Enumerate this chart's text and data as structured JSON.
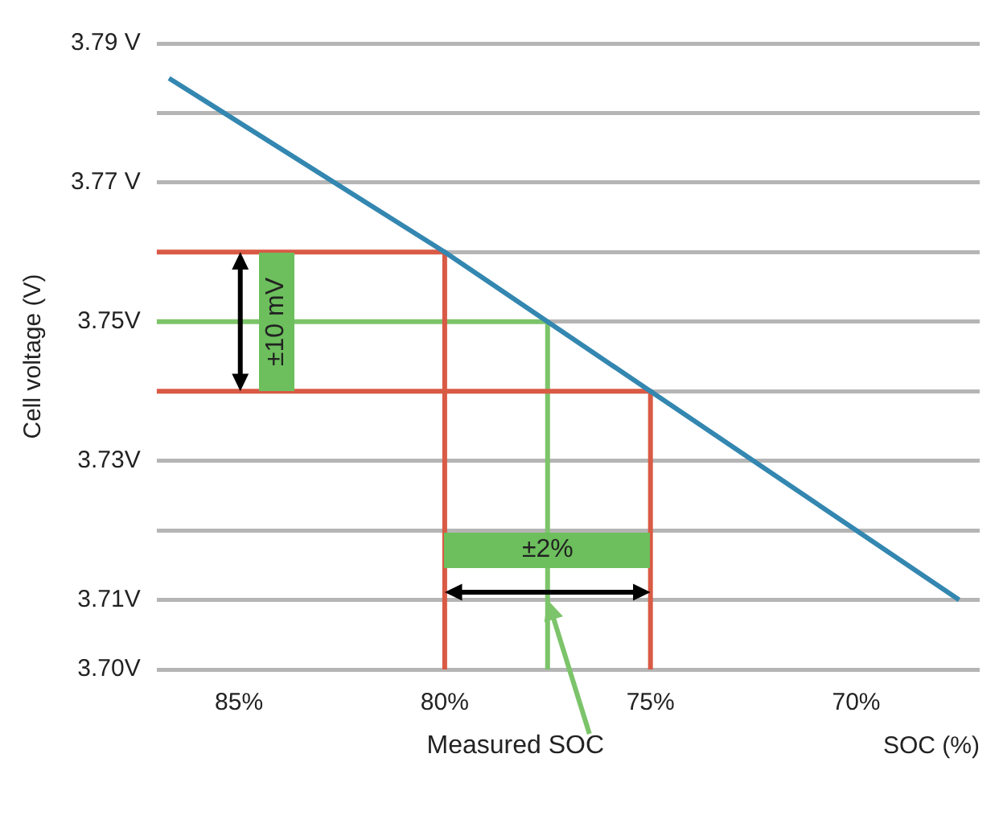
{
  "chart_data": {
    "type": "line",
    "xlabel": "SOC (%)",
    "ylabel": "Cell voltage (V)",
    "xlim": [
      87,
      67
    ],
    "xticks": [
      {
        "value": 85,
        "label": "85%"
      },
      {
        "value": 80,
        "label": "80%"
      },
      {
        "value": 75,
        "label": "75%"
      },
      {
        "value": 70,
        "label": "70%"
      }
    ],
    "ylim": [
      3.7,
      3.79
    ],
    "yticks": [
      {
        "value": 3.7,
        "label": "3.70V"
      },
      {
        "value": 3.71,
        "label": "3.71V"
      },
      {
        "value": 3.72,
        "label": null
      },
      {
        "value": 3.73,
        "label": "3.73V"
      },
      {
        "value": 3.74,
        "label": null
      },
      {
        "value": 3.75,
        "label": "3.75V"
      },
      {
        "value": 3.76,
        "label": null
      },
      {
        "value": 3.77,
        "label": "3.77 V"
      },
      {
        "value": 3.78,
        "label": null
      },
      {
        "value": 3.79,
        "label": "3.79 V"
      }
    ],
    "grid": "y",
    "legend": false,
    "marker": "none",
    "series": [
      {
        "color": "#3387b0",
        "x": [
          86.7,
          80,
          75,
          67.5
        ],
        "values": [
          3.785,
          3.76,
          3.74,
          3.71
        ]
      },
      {
        "color": "#d95a45",
        "x": [
          87,
          80,
          80
        ],
        "values": [
          3.76,
          3.76,
          3.7
        ]
      },
      {
        "color": "#d95a45",
        "x": [
          87,
          75,
          75
        ],
        "values": [
          3.74,
          3.74,
          3.7
        ]
      },
      {
        "color": "#7cc46a",
        "x": [
          87,
          77.5,
          77.5
        ],
        "values": [
          3.75,
          3.75,
          3.7
        ]
      }
    ],
    "annotations": [
      "±10 mV",
      "±2%",
      {
        "text": "Measured SOC",
        "x": 77.5,
        "y": 3.71
      }
    ]
  }
}
